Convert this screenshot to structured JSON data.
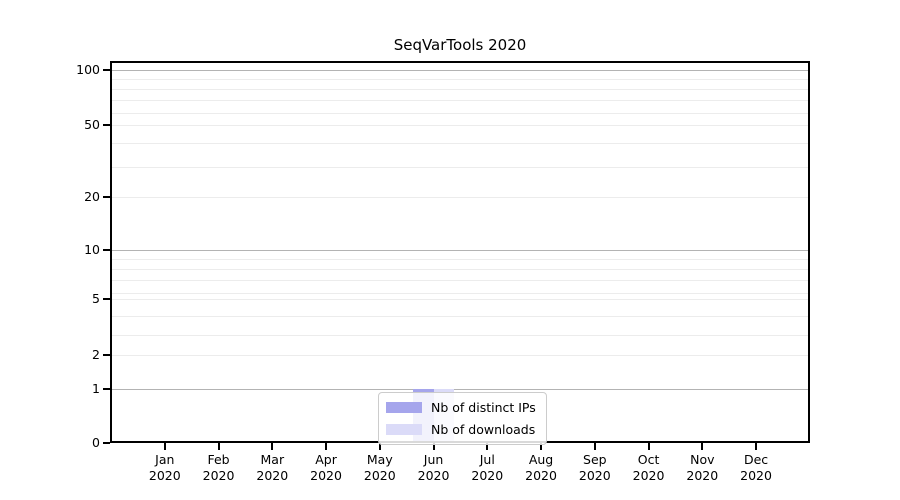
{
  "title": "SeqVarTools 2020",
  "chart_data": {
    "type": "bar",
    "title": "SeqVarTools 2020",
    "categories": [
      "Jan 2020",
      "Feb 2020",
      "Mar 2020",
      "Apr 2020",
      "May 2020",
      "Jun 2020",
      "Jul 2020",
      "Aug 2020",
      "Sep 2020",
      "Oct 2020",
      "Nov 2020",
      "Dec 2020"
    ],
    "series": [
      {
        "name": "Nb of distinct IPs",
        "color": "#a5a5ec",
        "values": [
          0,
          0,
          0,
          0,
          0,
          1,
          0,
          0,
          0,
          0,
          0,
          0
        ]
      },
      {
        "name": "Nb of downloads",
        "color": "#dbdbf8",
        "values": [
          0,
          0,
          0,
          0,
          0,
          1,
          0,
          0,
          0,
          0,
          0,
          0
        ]
      }
    ],
    "xlabel": "",
    "ylabel": "",
    "yscale": "log-like",
    "y_tick_labels": [
      "100",
      "50",
      "20",
      "10",
      "5",
      "2",
      "1",
      "0"
    ],
    "ylim": [
      0,
      110
    ],
    "grid": true,
    "legend_position": "lower center",
    "colors": {
      "major_grid": "#b3b3b3",
      "minor_grid": "#ececec",
      "axis_frame": "#000000",
      "background": "#ffffff"
    }
  }
}
